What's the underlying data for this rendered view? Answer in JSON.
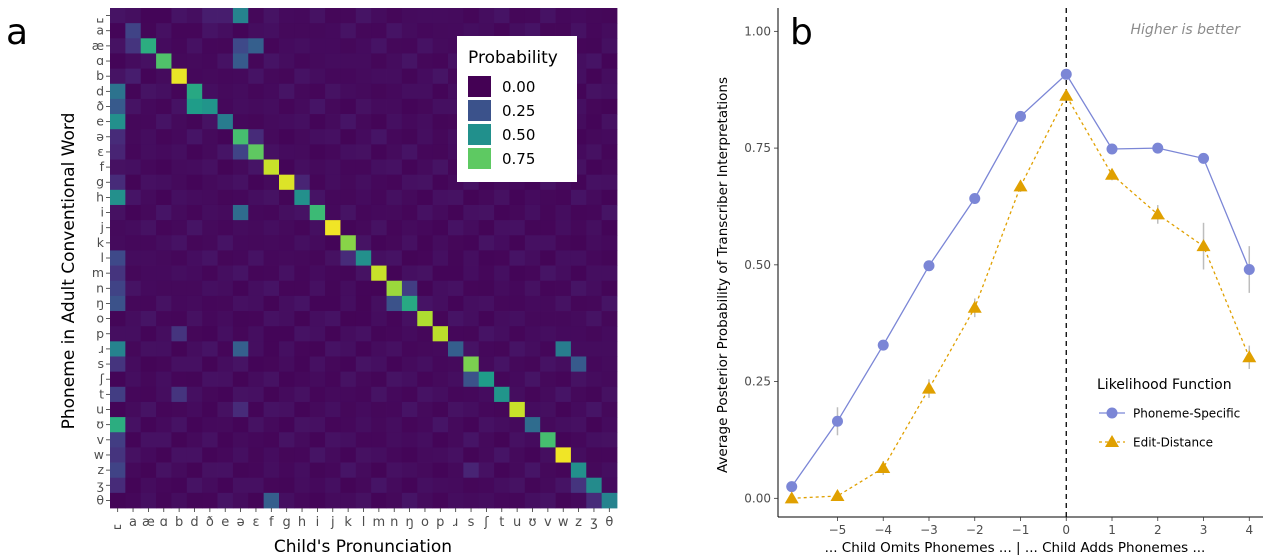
{
  "panel_a": {
    "label": "a",
    "legend_title": "Probability",
    "legend_items": [
      {
        "label": "0.00",
        "color": "#440154"
      },
      {
        "label": "0.25",
        "color": "#3b528b"
      },
      {
        "label": "0.50",
        "color": "#21908c"
      },
      {
        "label": "0.75",
        "color": "#5ec962"
      }
    ]
  },
  "panel_b": {
    "label": "b",
    "annotation": "Higher is better",
    "legend_title": "Likelihood Function",
    "colors": {
      "phoneme_specific": "#7b86d6",
      "edit_distance": "#e0a000"
    }
  },
  "chart_data": [
    {
      "type": "heatmap",
      "xlabel": "Child's Pronunciation",
      "ylabel": "Phoneme in Adult Conventional Word",
      "categories": [
        "␣",
        "a",
        "æ",
        "ɑ",
        "b",
        "d",
        "ð",
        "e",
        "ə",
        "ɛ",
        "f",
        "g",
        "h",
        "i",
        "j",
        "k",
        "l",
        "m",
        "n",
        "ŋ",
        "o",
        "p",
        "ɹ",
        "s",
        "ʃ",
        "t",
        "u",
        "ʊ",
        "v",
        "w",
        "z",
        "ʒ",
        "θ"
      ],
      "x_tick_labels": [
        "␣",
        "a",
        "æ",
        "ɑ",
        "b",
        "d",
        "ð",
        "e",
        "ə",
        "ɛ",
        "f",
        "g",
        "h",
        "i",
        "j",
        "k",
        "l",
        "m",
        "n",
        "ŋ",
        "o",
        "p",
        "ɹ",
        "s",
        "ʃ",
        "t",
        "u",
        "ʊ",
        "v",
        "w",
        "z",
        "ʒ",
        "θ"
      ],
      "y_tick_labels": [
        "␣",
        "a",
        "æ",
        "ɑ",
        "b",
        "d",
        "ð",
        "e",
        "ə",
        "ɛ",
        "f",
        "g",
        "h",
        "i",
        "j",
        "k",
        "l",
        "m",
        "n",
        "ŋ",
        "o",
        "p",
        "ɹ",
        "s",
        "ʃ",
        "t",
        "u",
        "ʊ",
        "v",
        "w",
        "z",
        "ʒ",
        "θ"
      ],
      "diagonal": [
        0.05,
        0.85,
        0.62,
        0.72,
        0.97,
        0.6,
        0.52,
        0.42,
        0.7,
        0.75,
        0.92,
        0.95,
        0.5,
        0.68,
        0.98,
        0.82,
        0.5,
        0.92,
        0.85,
        0.6,
        0.88,
        0.9,
        0.3,
        0.8,
        0.55,
        0.52,
        0.92,
        0.35,
        0.7,
        0.98,
        0.5,
        0.48,
        0.45
      ],
      "off_diagonal": [
        [
          0,
          8,
          0.45
        ],
        [
          1,
          1,
          0.2
        ],
        [
          2,
          1,
          0.15
        ],
        [
          4,
          1,
          0.08
        ],
        [
          5,
          0,
          0.38
        ],
        [
          6,
          0,
          0.28
        ],
        [
          7,
          0,
          0.5
        ],
        [
          8,
          0,
          0.12
        ],
        [
          9,
          0,
          0.1
        ],
        [
          11,
          0,
          0.12
        ],
        [
          12,
          0,
          0.5
        ],
        [
          16,
          0,
          0.22
        ],
        [
          17,
          0,
          0.15
        ],
        [
          18,
          0,
          0.2
        ],
        [
          19,
          0,
          0.25
        ],
        [
          22,
          0,
          0.45
        ],
        [
          23,
          0,
          0.15
        ],
        [
          25,
          0,
          0.18
        ],
        [
          27,
          0,
          0.62
        ],
        [
          28,
          0,
          0.18
        ],
        [
          29,
          0,
          0.15
        ],
        [
          30,
          0,
          0.2
        ],
        [
          31,
          0,
          0.12
        ],
        [
          2,
          8,
          0.22
        ],
        [
          2,
          9,
          0.3
        ],
        [
          3,
          8,
          0.28
        ],
        [
          6,
          5,
          0.55
        ],
        [
          8,
          9,
          0.12
        ],
        [
          9,
          8,
          0.2
        ],
        [
          13,
          8,
          0.35
        ],
        [
          22,
          8,
          0.3
        ],
        [
          22,
          29,
          0.42
        ],
        [
          23,
          30,
          0.28
        ],
        [
          24,
          23,
          0.25
        ],
        [
          19,
          18,
          0.25
        ],
        [
          18,
          19,
          0.18
        ],
        [
          16,
          15,
          0.12
        ],
        [
          32,
          10,
          0.3
        ],
        [
          32,
          31,
          0.12
        ],
        [
          26,
          8,
          0.12
        ],
        [
          11,
          12,
          0.1
        ],
        [
          21,
          4,
          0.15
        ],
        [
          25,
          4,
          0.15
        ],
        [
          31,
          30,
          0.15
        ],
        [
          30,
          23,
          0.1
        ],
        [
          0,
          6,
          0.08
        ],
        [
          0,
          7,
          0.08
        ],
        [
          0,
          10,
          0.05
        ]
      ],
      "zlim": [
        0,
        1
      ]
    },
    {
      "type": "line",
      "x": [
        -5,
        -4,
        -3,
        -2,
        -1,
        0,
        1,
        2,
        3,
        4
      ],
      "first_point_x": -6,
      "xlabel": "... Child Omits Phonemes ... | ... Child Adds Phonemes ...",
      "ylabel": "Average Posterior Probability of Transcriber Interpretations",
      "x_ticks": [
        -5,
        -4,
        -3,
        -2,
        -1,
        0,
        1,
        2,
        3,
        4
      ],
      "x_tick_labels": [
        "−5",
        "−4",
        "−3",
        "−2",
        "−1",
        "0",
        "1",
        "2",
        "3",
        "4"
      ],
      "y_ticks": [
        0,
        0.25,
        0.5,
        0.75,
        1.0
      ],
      "y_tick_labels": [
        "0.00",
        "0.25",
        "0.50",
        "0.75",
        "1.00"
      ],
      "xlim": [
        -6.3,
        4.3
      ],
      "ylim": [
        -0.04,
        1.05
      ],
      "vline_x": 0,
      "grid": false,
      "legend_position": "bottom-right",
      "series": [
        {
          "name": "Phoneme-Specific",
          "x": [
            -6,
            -5,
            -4,
            -3,
            -2,
            -1,
            0,
            1,
            2,
            3,
            4
          ],
          "values": [
            0.025,
            0.165,
            0.328,
            0.498,
            0.642,
            0.818,
            0.908,
            0.748,
            0.75,
            0.728,
            0.49
          ],
          "err": [
            0.005,
            0.03,
            0.01,
            0.01,
            0.008,
            0.008,
            0.006,
            0.006,
            0.006,
            0.01,
            0.05
          ],
          "marker": "circle",
          "line": "solid"
        },
        {
          "name": "Edit-Distance",
          "x": [
            -6,
            -5,
            -4,
            -3,
            -2,
            -1,
            0,
            1,
            2,
            3,
            4
          ],
          "values": [
            0.0,
            0.005,
            0.065,
            0.235,
            0.408,
            0.668,
            0.862,
            0.693,
            0.608,
            0.54,
            0.302
          ],
          "err": [
            0.003,
            0.003,
            0.015,
            0.02,
            0.02,
            0.012,
            0.01,
            0.012,
            0.02,
            0.05,
            0.025
          ],
          "marker": "triangle",
          "line": "dotted"
        }
      ]
    }
  ]
}
